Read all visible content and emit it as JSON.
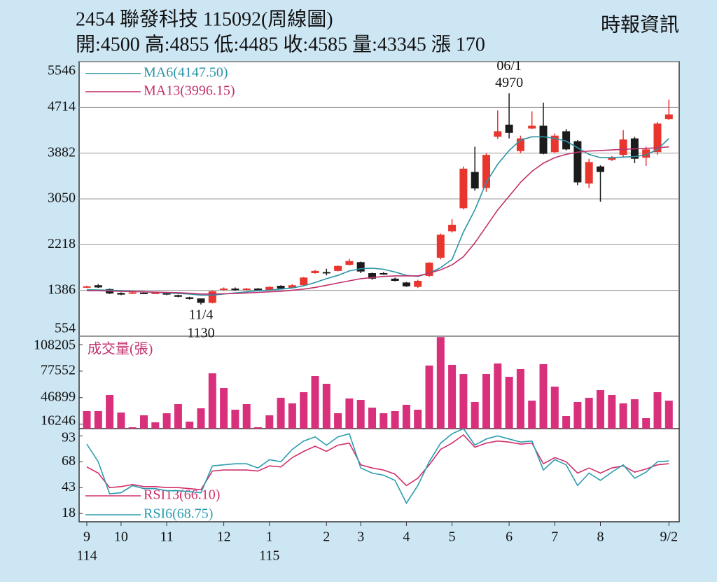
{
  "chart_data": [
    {
      "type": "candlestick",
      "title": "2454  聯發科技 115092(周線圖)",
      "subtitle": "開:4500 高:4855 低:4485 收:4585 量:43345 漲 170",
      "source": "時報資訊",
      "categories": [
        "9",
        null,
        null,
        "10",
        null,
        null,
        null,
        "11",
        null,
        null,
        null,
        null,
        "12",
        null,
        null,
        null,
        "1",
        null,
        null,
        null,
        null,
        "2",
        null,
        null,
        "3",
        null,
        null,
        null,
        "4",
        null,
        null,
        null,
        "5",
        null,
        null,
        null,
        null,
        "6",
        null,
        null,
        null,
        "7",
        null,
        null,
        null,
        "8",
        null,
        null,
        null,
        null,
        null,
        "9/2"
      ],
      "year_labels": [
        {
          "index": 0,
          "label": "114"
        },
        {
          "index": 16,
          "label": "115"
        }
      ],
      "open": [
        1440,
        1480,
        1410,
        1340,
        1330,
        1345,
        1330,
        1340,
        1300,
        1260,
        1240,
        1160,
        1400,
        1420,
        1400,
        1420,
        1390,
        1470,
        1430,
        1480,
        1700,
        1720,
        1740,
        1850,
        1900,
        1700,
        1700,
        1600,
        1530,
        1450,
        1650,
        1980,
        2460,
        2880,
        3540,
        3250,
        4180,
        4400,
        3920,
        4330,
        4380,
        3900,
        4280,
        4100,
        3330,
        3640,
        3760,
        3850,
        4150,
        3800,
        3900,
        4500
      ],
      "high": [
        1470,
        1500,
        1420,
        1350,
        1360,
        1360,
        1350,
        1350,
        1310,
        1270,
        1240,
        1380,
        1440,
        1440,
        1430,
        1430,
        1460,
        1480,
        1500,
        1630,
        1760,
        1780,
        1840,
        1960,
        1910,
        1710,
        1720,
        1620,
        1540,
        1580,
        1900,
        2420,
        2680,
        3640,
        4000,
        3880,
        4660,
        4970,
        4200,
        4640,
        4800,
        4240,
        4320,
        4120,
        3780,
        3660,
        3830,
        4300,
        4180,
        4000,
        4450,
        4855
      ],
      "low": [
        1430,
        1430,
        1320,
        1300,
        1320,
        1320,
        1320,
        1300,
        1260,
        1220,
        1130,
        1150,
        1380,
        1380,
        1390,
        1380,
        1380,
        1410,
        1420,
        1470,
        1690,
        1660,
        1730,
        1840,
        1700,
        1580,
        1670,
        1550,
        1450,
        1430,
        1630,
        1950,
        2440,
        2860,
        3200,
        3180,
        4140,
        4150,
        3880,
        4320,
        3860,
        3880,
        3930,
        3300,
        3250,
        3000,
        3740,
        3800,
        3700,
        3650,
        3850,
        4485
      ],
      "close": [
        1460,
        1440,
        1330,
        1310,
        1350,
        1335,
        1345,
        1310,
        1270,
        1230,
        1160,
        1370,
        1420,
        1390,
        1420,
        1390,
        1450,
        1420,
        1480,
        1620,
        1740,
        1710,
        1830,
        1920,
        1730,
        1600,
        1680,
        1560,
        1460,
        1560,
        1890,
        2400,
        2580,
        3600,
        3240,
        3850,
        4280,
        4250,
        4150,
        4380,
        3870,
        4200,
        3950,
        3350,
        3720,
        3540,
        3800,
        4130,
        3780,
        3950,
        4420,
        4585
      ],
      "up_color": "#e8352e",
      "down_color": "#1b1b1b",
      "series": [
        {
          "name": "MA6(4147.50)",
          "color": "#2b93a6",
          "values": [
            1400,
            1395,
            1390,
            1380,
            1370,
            1360,
            1350,
            1340,
            1330,
            1320,
            1300,
            1300,
            1320,
            1340,
            1360,
            1380,
            1390,
            1410,
            1430,
            1470,
            1530,
            1600,
            1660,
            1740,
            1780,
            1790,
            1770,
            1720,
            1660,
            1640,
            1700,
            1800,
            1950,
            2450,
            2850,
            3350,
            3680,
            3930,
            4120,
            4180,
            4180,
            4150,
            4100,
            3980,
            3860,
            3800,
            3800,
            3810,
            3820,
            3850,
            3950,
            4147.5
          ]
        },
        {
          "name": "MA13(3996.15)",
          "color": "#c2306c",
          "values": [
            1380,
            1380,
            1375,
            1370,
            1365,
            1360,
            1355,
            1350,
            1345,
            1335,
            1320,
            1320,
            1325,
            1330,
            1340,
            1350,
            1360,
            1370,
            1390,
            1410,
            1440,
            1480,
            1520,
            1560,
            1600,
            1620,
            1640,
            1650,
            1650,
            1650,
            1700,
            1760,
            1850,
            2000,
            2250,
            2550,
            2850,
            3100,
            3350,
            3550,
            3700,
            3800,
            3860,
            3900,
            3920,
            3930,
            3940,
            3950,
            3960,
            3970,
            3980,
            3996.15
          ]
        }
      ],
      "ylim": [
        554,
        5546
      ],
      "yticks": [
        554,
        1386,
        2218,
        3050,
        3882,
        4714,
        5546
      ],
      "grid": true,
      "annotations": [
        {
          "index": 37,
          "date": "06/1",
          "value": 4970,
          "anchor": "high"
        },
        {
          "index": 10,
          "date": "11/4",
          "value": 1130,
          "anchor": "low"
        }
      ]
    },
    {
      "type": "bar",
      "label": "成交量(張)",
      "color": "#d9307c",
      "values": [
        31300,
        31300,
        49900,
        29600,
        12600,
        26400,
        18300,
        28800,
        39400,
        19100,
        34500,
        75000,
        58000,
        32900,
        39400,
        12600,
        26400,
        46700,
        40200,
        53200,
        71800,
        62900,
        28800,
        45900,
        44200,
        35300,
        28800,
        31300,
        38600,
        32900,
        84000,
        117000,
        84800,
        74200,
        41800,
        74200,
        86400,
        71000,
        79900,
        43400,
        85600,
        59600,
        25600,
        41800,
        46700,
        55600,
        49900,
        40200,
        45000,
        23200,
        53200,
        43345
      ],
      "ylim": [
        11000,
        118000
      ],
      "yticks": [
        16246,
        46899,
        77552,
        108205
      ],
      "grid": false
    },
    {
      "type": "line",
      "series": [
        {
          "name": "RSI13(66.10)",
          "color": "#d0306c",
          "values": [
            63,
            57,
            43,
            44,
            46,
            44,
            44,
            43,
            43,
            42,
            41,
            59,
            60,
            60,
            60,
            59,
            64,
            63,
            72,
            78,
            83,
            78,
            84,
            86,
            65,
            62,
            60,
            56,
            45,
            52,
            65,
            80,
            86,
            94,
            82,
            86,
            88,
            87,
            85,
            86,
            66,
            72,
            68,
            57,
            62,
            57,
            62,
            64,
            58,
            61,
            65,
            66.1
          ]
        },
        {
          "name": "RSI6(68.75)",
          "color": "#2b9db0",
          "values": [
            85,
            68,
            37,
            38,
            45,
            42,
            42,
            40,
            40,
            39,
            38,
            64,
            65,
            66,
            66,
            62,
            70,
            68,
            80,
            88,
            92,
            84,
            92,
            95,
            62,
            57,
            55,
            50,
            28,
            45,
            68,
            86,
            95,
            100,
            84,
            90,
            93,
            90,
            87,
            88,
            60,
            70,
            65,
            45,
            57,
            50,
            58,
            65,
            52,
            58,
            68,
            68.75
          ]
        }
      ],
      "ylim": [
        10,
        100
      ],
      "yticks": [
        18,
        43,
        68,
        93
      ],
      "grid": false
    }
  ]
}
